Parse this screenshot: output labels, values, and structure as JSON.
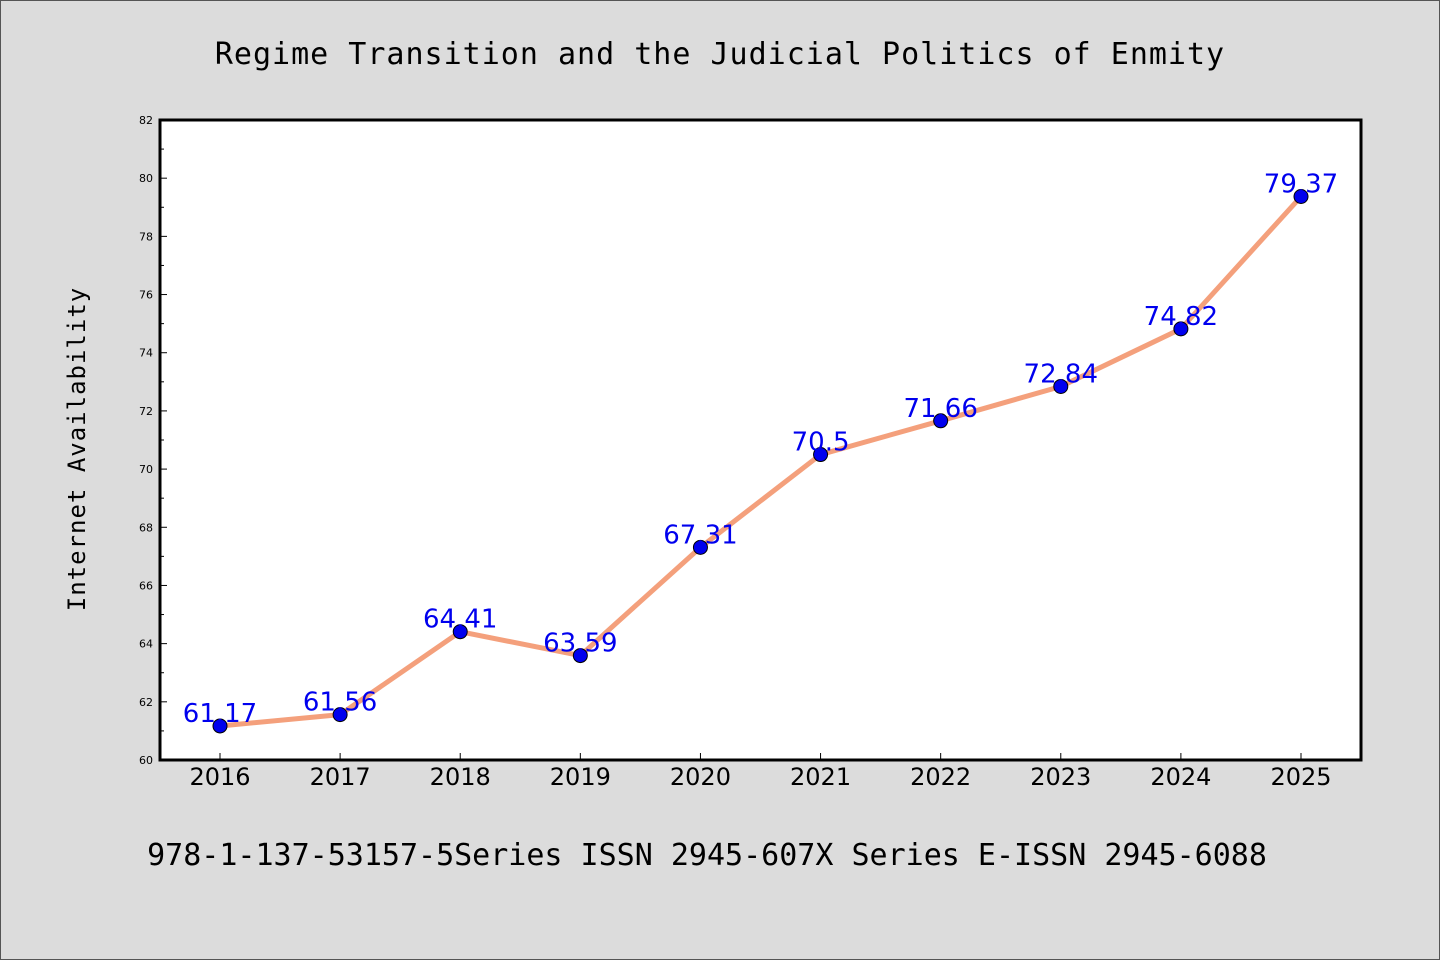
{
  "chart_data": {
    "type": "line",
    "title": "Regime Transition and the Judicial Politics of Enmity",
    "xlabel": "",
    "ylabel": "Internet Availability",
    "categories": [
      "2016",
      "2017",
      "2018",
      "2019",
      "2020",
      "2021",
      "2022",
      "2023",
      "2024",
      "2025"
    ],
    "series": [
      {
        "values": [
          61.17,
          61.56,
          64.41,
          63.59,
          67.31,
          70.5,
          71.66,
          72.84,
          74.82,
          79.37
        ],
        "data_labels": [
          "61.17",
          "61.56",
          "64.41",
          "63.59",
          "67.31",
          "70.5",
          "71.66",
          "72.84",
          "74.82",
          "79.37"
        ]
      }
    ],
    "ylim": [
      60,
      82
    ],
    "yticks": [
      "60",
      "62",
      "64",
      "66",
      "68",
      "70",
      "72",
      "74",
      "76",
      "78",
      "80",
      "82"
    ],
    "grid": false,
    "legend": "none",
    "colors": {
      "line": "#f4a07c",
      "marker": "#0000ee",
      "marker_edge": "#000000",
      "data_label": "#0000ee",
      "background": "#dcdcdc",
      "plot_background": "#ffffff"
    },
    "footer": "978-1-137-53157-5Series ISSN 2945-607X Series E-ISSN 2945-6088"
  }
}
